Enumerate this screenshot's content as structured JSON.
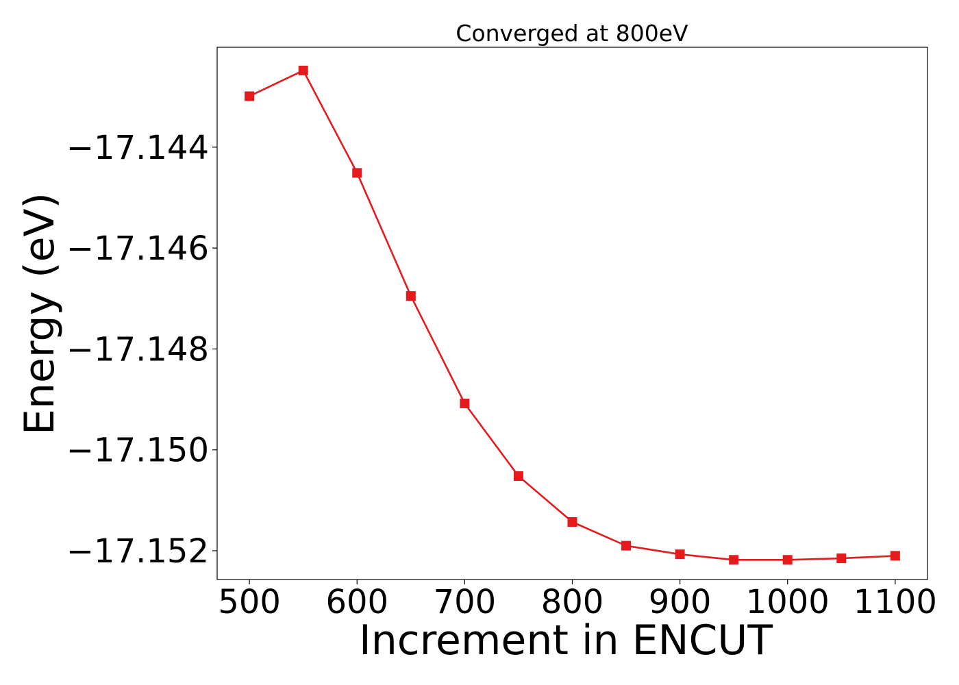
{
  "chart_data": {
    "type": "line",
    "title": "Converged at 800eV",
    "xlabel": "Increment in ENCUT",
    "ylabel": "Energy (eV)",
    "x": [
      500,
      550,
      600,
      650,
      700,
      750,
      800,
      850,
      900,
      950,
      1000,
      1050,
      1100
    ],
    "series": [
      {
        "values": [
          -17.14299,
          -17.14248,
          -17.14451,
          -17.14695,
          -17.14908,
          -17.15052,
          -17.15143,
          -17.1519,
          -17.15207,
          -17.15218,
          -17.15218,
          -17.15215,
          -17.1521
        ],
        "color": "#e41a1c",
        "marker": "square"
      }
    ],
    "xticks": [
      500,
      600,
      700,
      800,
      900,
      1000,
      1100
    ],
    "yticks": [
      -17.144,
      -17.146,
      -17.148,
      -17.15,
      -17.152
    ],
    "ytick_labels": [
      "−17.144",
      "−17.146",
      "−17.148",
      "−17.150",
      "−17.152"
    ],
    "xlim": [
      470,
      1130
    ],
    "ylim": [
      -17.15257,
      -17.14202
    ],
    "grid": false,
    "legend": "none"
  }
}
